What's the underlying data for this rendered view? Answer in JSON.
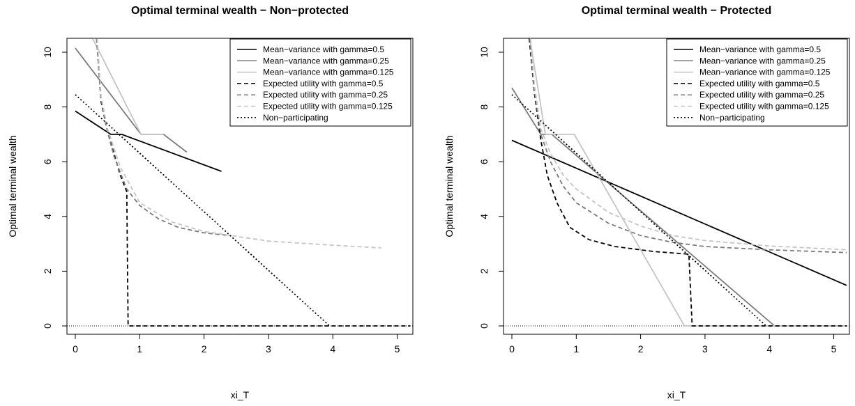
{
  "chart_data": [
    {
      "type": "line",
      "title": "Optimal terminal wealth − Non−protected",
      "xlabel": "xi_T",
      "ylabel": "Optimal terminal wealth",
      "xlim": [
        0,
        5.2
      ],
      "ylim": [
        0,
        10.5
      ],
      "xticks": [
        "0",
        "1",
        "2",
        "3",
        "4",
        "5"
      ],
      "yticks": [
        "0",
        "2",
        "4",
        "6",
        "8",
        "10"
      ],
      "legend_position": "top-right",
      "reference_line_y": 0,
      "series": [
        {
          "name": "Mean−variance with gamma=0.5",
          "color": "#000000",
          "dash": "solid",
          "points": [
            [
              0,
              7.85
            ],
            [
              0.55,
              7.0
            ],
            [
              0.72,
              7.0
            ],
            [
              2.27,
              5.65
            ]
          ]
        },
        {
          "name": "Mean−variance with gamma=0.25",
          "color": "#7a7a7a",
          "dash": "solid",
          "points": [
            [
              0,
              10.15
            ],
            [
              1.02,
              7.0
            ],
            [
              1.37,
              7.0
            ],
            [
              1.73,
              6.35
            ]
          ]
        },
        {
          "name": "Mean−variance with gamma=0.125",
          "color": "#c4c4c4",
          "dash": "solid",
          "points": [
            [
              0.27,
              10.5
            ],
            [
              1.02,
              7.0
            ],
            [
              1.37,
              7.0
            ]
          ]
        },
        {
          "name": "Expected utility with gamma=0.5",
          "color": "#000000",
          "dash": "dashed",
          "points": [
            [
              0.33,
              10.5
            ],
            [
              0.4,
              8.2
            ],
            [
              0.5,
              7.1
            ],
            [
              0.6,
              6.3
            ],
            [
              0.7,
              5.5
            ],
            [
              0.8,
              4.9
            ],
            [
              0.82,
              0
            ],
            [
              5.2,
              0
            ]
          ]
        },
        {
          "name": "Expected utility with gamma=0.25",
          "color": "#7a7a7a",
          "dash": "dashed",
          "points": [
            [
              0.33,
              10.5
            ],
            [
              0.4,
              8.3
            ],
            [
              0.5,
              7.1
            ],
            [
              0.6,
              6.2
            ],
            [
              0.8,
              5.0
            ],
            [
              1.0,
              4.4
            ],
            [
              1.3,
              3.9
            ],
            [
              1.6,
              3.6
            ],
            [
              2.0,
              3.4
            ],
            [
              2.4,
              3.3
            ]
          ]
        },
        {
          "name": "Expected utility with gamma=0.125",
          "color": "#c4c4c4",
          "dash": "dashed",
          "points": [
            [
              0.34,
              10.5
            ],
            [
              0.4,
              8.4
            ],
            [
              0.5,
              7.2
            ],
            [
              0.7,
              5.8
            ],
            [
              1.0,
              4.5
            ],
            [
              1.5,
              3.8
            ],
            [
              2.0,
              3.45
            ],
            [
              3.0,
              3.1
            ],
            [
              4.0,
              2.95
            ],
            [
              4.75,
              2.85
            ]
          ]
        },
        {
          "name": "Non−participating",
          "color": "#000000",
          "dash": "dotted",
          "points": [
            [
              0,
              8.45
            ],
            [
              3.95,
              0
            ]
          ]
        }
      ]
    },
    {
      "type": "line",
      "title": "Optimal terminal wealth − Protected",
      "xlabel": "xi_T",
      "ylabel": "Optimal terminal wealth",
      "xlim": [
        0,
        5.2
      ],
      "ylim": [
        0,
        10.5
      ],
      "xticks": [
        "0",
        "1",
        "2",
        "3",
        "4",
        "5"
      ],
      "yticks": [
        "0",
        "2",
        "4",
        "6",
        "8",
        "10"
      ],
      "legend_position": "top-right",
      "reference_line_y": 0,
      "series": [
        {
          "name": "Mean−variance with gamma=0.5",
          "color": "#000000",
          "dash": "solid",
          "points": [
            [
              0,
              6.78
            ],
            [
              5.2,
              1.48
            ]
          ]
        },
        {
          "name": "Mean−variance with gamma=0.25",
          "color": "#7a7a7a",
          "dash": "solid",
          "points": [
            [
              0,
              8.7
            ],
            [
              0.45,
              7.0
            ],
            [
              0.62,
              7.0
            ],
            [
              4.08,
              0
            ],
            [
              5.2,
              0
            ]
          ]
        },
        {
          "name": "Mean−variance with gamma=0.125",
          "color": "#c4c4c4",
          "dash": "solid",
          "points": [
            [
              0.28,
              10.5
            ],
            [
              0.52,
              7.0
            ],
            [
              0.97,
              7.0
            ],
            [
              2.68,
              0
            ],
            [
              5.2,
              0
            ]
          ]
        },
        {
          "name": "Expected utility with gamma=0.5",
          "color": "#000000",
          "dash": "dashed",
          "points": [
            [
              0.27,
              10.5
            ],
            [
              0.35,
              8.5
            ],
            [
              0.45,
              6.8
            ],
            [
              0.55,
              5.5
            ],
            [
              0.7,
              4.5
            ],
            [
              0.9,
              3.6
            ],
            [
              1.2,
              3.15
            ],
            [
              1.6,
              2.9
            ],
            [
              2.2,
              2.72
            ],
            [
              2.75,
              2.62
            ],
            [
              2.8,
              0
            ],
            [
              5.2,
              0
            ]
          ]
        },
        {
          "name": "Expected utility with gamma=0.25",
          "color": "#7a7a7a",
          "dash": "dashed",
          "points": [
            [
              0.28,
              10.5
            ],
            [
              0.35,
              8.6
            ],
            [
              0.45,
              7.0
            ],
            [
              0.6,
              6.0
            ],
            [
              0.8,
              5.1
            ],
            [
              1.0,
              4.5
            ],
            [
              1.5,
              3.75
            ],
            [
              2.0,
              3.3
            ],
            [
              2.5,
              3.05
            ],
            [
              3.0,
              2.9
            ],
            [
              4.0,
              2.78
            ],
            [
              5.2,
              2.68
            ]
          ]
        },
        {
          "name": "Expected utility with gamma=0.125",
          "color": "#c4c4c4",
          "dash": "dashed",
          "points": [
            [
              0.29,
              10.5
            ],
            [
              0.35,
              8.8
            ],
            [
              0.45,
              7.2
            ],
            [
              0.6,
              6.3
            ],
            [
              0.8,
              5.5
            ],
            [
              1.0,
              5.0
            ],
            [
              1.5,
              4.15
            ],
            [
              2.0,
              3.65
            ],
            [
              2.5,
              3.3
            ],
            [
              3.0,
              3.12
            ],
            [
              4.0,
              2.92
            ],
            [
              5.2,
              2.78
            ]
          ]
        },
        {
          "name": "Non−participating",
          "color": "#000000",
          "dash": "dotted",
          "points": [
            [
              0,
              8.45
            ],
            [
              3.95,
              0
            ]
          ]
        }
      ]
    }
  ]
}
